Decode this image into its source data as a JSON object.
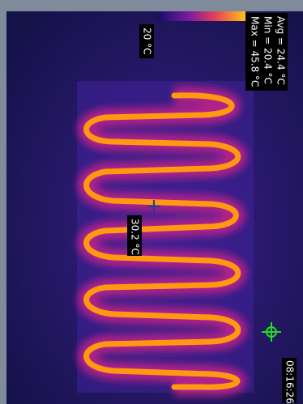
{
  "scale": {
    "min_label": "20 °C"
  },
  "stats": {
    "avg": "Avg = 24.4 °C",
    "min": "Min = 20.4 °C",
    "max": "Max = 45.8 °C"
  },
  "spot": {
    "label": "30.2 °C"
  },
  "timestamp": "08:16:26"
}
